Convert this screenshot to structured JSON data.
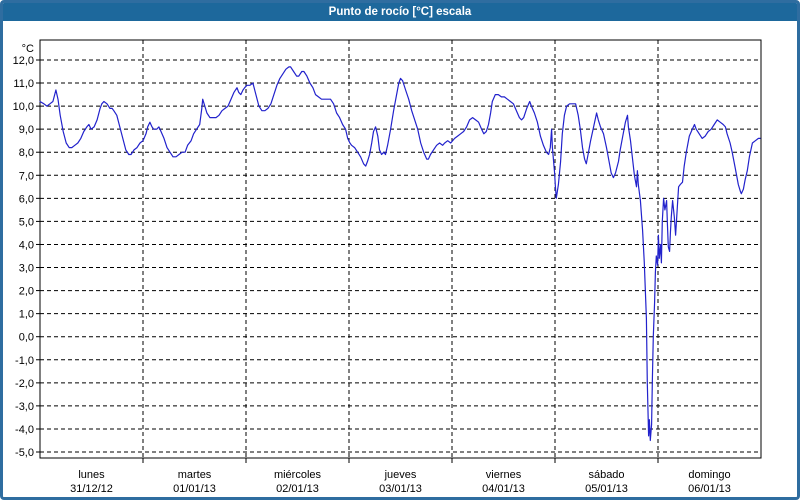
{
  "title": "Punto de rocío [°C] escala",
  "colors": {
    "frame_border": "#2f6da0",
    "titlebar_bg": "#1d689c",
    "title_text": "#ffffff",
    "grid": "#000000",
    "axis_text": "#000000",
    "line": "#2222cc",
    "plot_bg": "#ffffff"
  },
  "chart_data": {
    "type": "line",
    "title": "Punto de rocío [°C] escala",
    "series_name": "Punto de rocío",
    "unit_label": "°C",
    "grid": "dashed",
    "legend_position": "none",
    "ylim": [
      -5.3,
      12.9
    ],
    "xlim_hours": [
      0,
      168
    ],
    "y_ticks": [
      {
        "v": 12,
        "label": "12,0"
      },
      {
        "v": 11,
        "label": "11,0"
      },
      {
        "v": 10,
        "label": "10,0"
      },
      {
        "v": 9,
        "label": "9,0"
      },
      {
        "v": 8,
        "label": "8,0"
      },
      {
        "v": 7,
        "label": "7,0"
      },
      {
        "v": 6,
        "label": "6,0"
      },
      {
        "v": 5,
        "label": "5,0"
      },
      {
        "v": 4,
        "label": "4,0"
      },
      {
        "v": 3,
        "label": "3,0"
      },
      {
        "v": 2,
        "label": "2,0"
      },
      {
        "v": 1,
        "label": "1,0"
      },
      {
        "v": 0,
        "label": "0,0"
      },
      {
        "v": -1,
        "label": "-1,0"
      },
      {
        "v": -2,
        "label": "-2,0"
      },
      {
        "v": -3,
        "label": "-3,0"
      },
      {
        "v": -4,
        "label": "-4,0"
      },
      {
        "v": -5,
        "label": "-5,0"
      }
    ],
    "x_days": [
      {
        "name": "lunes",
        "date": "31/12/12"
      },
      {
        "name": "martes",
        "date": "01/01/13"
      },
      {
        "name": "miércoles",
        "date": "02/01/13"
      },
      {
        "name": "jueves",
        "date": "03/01/13"
      },
      {
        "name": "viernes",
        "date": "04/01/13"
      },
      {
        "name": "sábado",
        "date": "05/01/13"
      },
      {
        "name": "domingo",
        "date": "06/01/13"
      }
    ],
    "points": [
      [
        0,
        10.2
      ],
      [
        0.9,
        10.1
      ],
      [
        1.6,
        10.0
      ],
      [
        2.3,
        10.1
      ],
      [
        3.0,
        10.2
      ],
      [
        3.7,
        10.7
      ],
      [
        4.2,
        10.3
      ],
      [
        4.7,
        9.6
      ],
      [
        5.4,
        8.9
      ],
      [
        6.1,
        8.4
      ],
      [
        6.8,
        8.2
      ],
      [
        7.4,
        8.2
      ],
      [
        8.1,
        8.3
      ],
      [
        8.8,
        8.4
      ],
      [
        9.5,
        8.6
      ],
      [
        10.2,
        8.9
      ],
      [
        10.9,
        9.1
      ],
      [
        11.4,
        9.2
      ],
      [
        11.9,
        9.0
      ],
      [
        12.6,
        9.1
      ],
      [
        13.3,
        9.4
      ],
      [
        14.0,
        9.9
      ],
      [
        14.4,
        10.1
      ],
      [
        14.9,
        10.2
      ],
      [
        15.6,
        10.1
      ],
      [
        16.3,
        9.9
      ],
      [
        16.8,
        9.9
      ],
      [
        17.2,
        9.8
      ],
      [
        17.9,
        9.6
      ],
      [
        18.6,
        9.1
      ],
      [
        19.3,
        8.6
      ],
      [
        20.0,
        8.1
      ],
      [
        20.7,
        7.9
      ],
      [
        21.2,
        7.9
      ],
      [
        21.9,
        8.1
      ],
      [
        22.6,
        8.2
      ],
      [
        23.3,
        8.4
      ],
      [
        24.0,
        8.5
      ],
      [
        24.7,
        8.8
      ],
      [
        25.1,
        9.1
      ],
      [
        25.6,
        9.3
      ],
      [
        26.1,
        9.1
      ],
      [
        26.5,
        9.0
      ],
      [
        27.2,
        9.0
      ],
      [
        27.7,
        9.1
      ],
      [
        28.2,
        8.9
      ],
      [
        28.9,
        8.6
      ],
      [
        29.6,
        8.2
      ],
      [
        30.3,
        8.0
      ],
      [
        31.0,
        7.8
      ],
      [
        31.7,
        7.8
      ],
      [
        32.4,
        7.9
      ],
      [
        33.1,
        8.0
      ],
      [
        33.8,
        8.0
      ],
      [
        34.4,
        8.3
      ],
      [
        35.2,
        8.5
      ],
      [
        35.8,
        8.8
      ],
      [
        36.5,
        9.0
      ],
      [
        37.2,
        9.2
      ],
      [
        37.7,
        9.9
      ],
      [
        37.9,
        10.3
      ],
      [
        38.4,
        10.0
      ],
      [
        38.9,
        9.7
      ],
      [
        39.6,
        9.5
      ],
      [
        40.3,
        9.5
      ],
      [
        41.0,
        9.5
      ],
      [
        41.7,
        9.6
      ],
      [
        42.4,
        9.8
      ],
      [
        43.1,
        9.9
      ],
      [
        43.8,
        10.0
      ],
      [
        44.5,
        10.3
      ],
      [
        45.2,
        10.6
      ],
      [
        45.9,
        10.8
      ],
      [
        46.3,
        10.6
      ],
      [
        46.8,
        10.5
      ],
      [
        47.3,
        10.7
      ],
      [
        47.7,
        10.8
      ],
      [
        48.2,
        10.9
      ],
      [
        48.9,
        10.9
      ],
      [
        49.6,
        11.0
      ],
      [
        50.3,
        10.5
      ],
      [
        51.0,
        10.0
      ],
      [
        51.7,
        9.8
      ],
      [
        52.4,
        9.8
      ],
      [
        53.1,
        9.9
      ],
      [
        53.8,
        10.1
      ],
      [
        54.5,
        10.5
      ],
      [
        55.2,
        10.9
      ],
      [
        55.9,
        11.2
      ],
      [
        56.6,
        11.4
      ],
      [
        57.3,
        11.6
      ],
      [
        58.0,
        11.7
      ],
      [
        58.4,
        11.7
      ],
      [
        59.1,
        11.5
      ],
      [
        59.8,
        11.3
      ],
      [
        60.3,
        11.3
      ],
      [
        61.0,
        11.5
      ],
      [
        61.5,
        11.5
      ],
      [
        62.2,
        11.3
      ],
      [
        62.9,
        11.0
      ],
      [
        63.6,
        10.8
      ],
      [
        64.2,
        10.5
      ],
      [
        64.9,
        10.4
      ],
      [
        65.6,
        10.3
      ],
      [
        66.3,
        10.3
      ],
      [
        67.0,
        10.3
      ],
      [
        67.7,
        10.3
      ],
      [
        68.4,
        10.1
      ],
      [
        69.1,
        9.7
      ],
      [
        69.8,
        9.5
      ],
      [
        70.5,
        9.2
      ],
      [
        71.2,
        9.0
      ],
      [
        71.7,
        8.6
      ],
      [
        72.2,
        8.4
      ],
      [
        72.6,
        8.3
      ],
      [
        73.3,
        8.2
      ],
      [
        74.0,
        8.0
      ],
      [
        74.7,
        7.8
      ],
      [
        75.4,
        7.5
      ],
      [
        75.9,
        7.4
      ],
      [
        76.3,
        7.6
      ],
      [
        76.8,
        7.9
      ],
      [
        77.3,
        8.4
      ],
      [
        77.7,
        8.9
      ],
      [
        78.2,
        9.1
      ],
      [
        78.7,
        8.7
      ],
      [
        79.1,
        8.1
      ],
      [
        79.6,
        7.9
      ],
      [
        80.1,
        8.0
      ],
      [
        80.5,
        7.9
      ],
      [
        81.0,
        8.3
      ],
      [
        81.7,
        9.0
      ],
      [
        82.4,
        9.8
      ],
      [
        83.1,
        10.5
      ],
      [
        83.6,
        11.0
      ],
      [
        84.0,
        11.2
      ],
      [
        84.5,
        11.1
      ],
      [
        85.2,
        10.7
      ],
      [
        85.9,
        10.3
      ],
      [
        86.6,
        9.8
      ],
      [
        87.3,
        9.4
      ],
      [
        88.0,
        9.0
      ],
      [
        88.7,
        8.4
      ],
      [
        89.4,
        8.0
      ],
      [
        90.1,
        7.7
      ],
      [
        90.5,
        7.7
      ],
      [
        91.0,
        7.9
      ],
      [
        91.7,
        8.1
      ],
      [
        92.4,
        8.3
      ],
      [
        93.1,
        8.4
      ],
      [
        93.8,
        8.3
      ],
      [
        94.3,
        8.4
      ],
      [
        95.0,
        8.5
      ],
      [
        95.7,
        8.4
      ],
      [
        96.6,
        8.6
      ],
      [
        97.3,
        8.7
      ],
      [
        98.0,
        8.8
      ],
      [
        98.7,
        8.9
      ],
      [
        99.4,
        9.1
      ],
      [
        100.1,
        9.4
      ],
      [
        100.8,
        9.5
      ],
      [
        101.5,
        9.4
      ],
      [
        102.2,
        9.3
      ],
      [
        102.9,
        9.0
      ],
      [
        103.4,
        8.8
      ],
      [
        104.0,
        8.9
      ],
      [
        104.5,
        9.2
      ],
      [
        105.0,
        9.7
      ],
      [
        105.4,
        10.2
      ],
      [
        106.1,
        10.5
      ],
      [
        106.8,
        10.5
      ],
      [
        107.5,
        10.4
      ],
      [
        108.2,
        10.4
      ],
      [
        108.9,
        10.3
      ],
      [
        109.6,
        10.2
      ],
      [
        110.3,
        10.1
      ],
      [
        111.0,
        9.8
      ],
      [
        111.7,
        9.5
      ],
      [
        112.2,
        9.4
      ],
      [
        112.7,
        9.5
      ],
      [
        113.4,
        9.9
      ],
      [
        114.1,
        10.2
      ],
      [
        114.5,
        10.0
      ],
      [
        115.2,
        9.7
      ],
      [
        115.9,
        9.3
      ],
      [
        116.6,
        8.7
      ],
      [
        117.3,
        8.3
      ],
      [
        118.0,
        8.0
      ],
      [
        118.5,
        7.9
      ],
      [
        118.9,
        8.2
      ],
      [
        119.2,
        9.0
      ],
      [
        119.4,
        8.2
      ],
      [
        119.9,
        7.1
      ],
      [
        120.1,
        6.5
      ],
      [
        120.3,
        6.0
      ],
      [
        120.8,
        6.6
      ],
      [
        121.3,
        7.6
      ],
      [
        121.7,
        8.8
      ],
      [
        122.2,
        9.6
      ],
      [
        122.7,
        10.0
      ],
      [
        123.4,
        10.1
      ],
      [
        124.1,
        10.1
      ],
      [
        124.8,
        10.1
      ],
      [
        125.4,
        9.6
      ],
      [
        125.9,
        9.0
      ],
      [
        126.4,
        8.2
      ],
      [
        126.9,
        7.7
      ],
      [
        127.3,
        7.5
      ],
      [
        127.8,
        8.0
      ],
      [
        128.3,
        8.5
      ],
      [
        129.0,
        9.1
      ],
      [
        129.7,
        9.7
      ],
      [
        130.1,
        9.4
      ],
      [
        130.6,
        9.1
      ],
      [
        131.3,
        8.8
      ],
      [
        132.0,
        8.2
      ],
      [
        132.7,
        7.5
      ],
      [
        133.1,
        7.1
      ],
      [
        133.6,
        6.9
      ],
      [
        134.1,
        7.1
      ],
      [
        134.8,
        7.6
      ],
      [
        135.2,
        8.1
      ],
      [
        135.9,
        8.8
      ],
      [
        136.4,
        9.3
      ],
      [
        136.9,
        9.6
      ],
      [
        137.1,
        9.1
      ],
      [
        137.6,
        8.5
      ],
      [
        138.0,
        7.8
      ],
      [
        138.5,
        7.0
      ],
      [
        139.0,
        6.5
      ],
      [
        139.2,
        7.2
      ],
      [
        139.4,
        6.6
      ],
      [
        139.9,
        5.9
      ],
      [
        140.4,
        4.6
      ],
      [
        140.8,
        3.2
      ],
      [
        141.3,
        0.8
      ],
      [
        141.5,
        -2.0
      ],
      [
        141.8,
        -4.3
      ],
      [
        142.0,
        -3.6
      ],
      [
        142.2,
        -4.5
      ],
      [
        142.5,
        -3.8
      ],
      [
        142.7,
        -1.8
      ],
      [
        142.9,
        0.0
      ],
      [
        143.2,
        1.5
      ],
      [
        143.4,
        2.8
      ],
      [
        143.6,
        3.5
      ],
      [
        143.9,
        3.1
      ],
      [
        144.1,
        4.4
      ],
      [
        144.3,
        3.4
      ],
      [
        144.6,
        4.0
      ],
      [
        144.8,
        3.2
      ],
      [
        145.0,
        5.0
      ],
      [
        145.3,
        6.0
      ],
      [
        145.6,
        5.5
      ],
      [
        146.0,
        5.9
      ],
      [
        146.2,
        4.9
      ],
      [
        146.4,
        3.9
      ],
      [
        146.7,
        3.7
      ],
      [
        146.9,
        4.5
      ],
      [
        147.1,
        5.2
      ],
      [
        147.4,
        5.9
      ],
      [
        147.8,
        5.2
      ],
      [
        148.1,
        4.4
      ],
      [
        148.5,
        5.6
      ],
      [
        148.8,
        6.5
      ],
      [
        149.2,
        6.6
      ],
      [
        149.7,
        6.7
      ],
      [
        150.1,
        7.4
      ],
      [
        150.6,
        8.0
      ],
      [
        151.3,
        8.7
      ],
      [
        152.0,
        9.0
      ],
      [
        152.5,
        9.2
      ],
      [
        152.9,
        9.0
      ],
      [
        153.6,
        8.8
      ],
      [
        154.3,
        8.6
      ],
      [
        155.0,
        8.7
      ],
      [
        155.7,
        8.9
      ],
      [
        156.4,
        9.0
      ],
      [
        157.1,
        9.2
      ],
      [
        157.8,
        9.4
      ],
      [
        158.5,
        9.3
      ],
      [
        159.2,
        9.2
      ],
      [
        159.7,
        9.1
      ],
      [
        160.1,
        8.8
      ],
      [
        160.8,
        8.4
      ],
      [
        161.3,
        8.0
      ],
      [
        162.0,
        7.3
      ],
      [
        162.7,
        6.6
      ],
      [
        163.2,
        6.3
      ],
      [
        163.4,
        6.2
      ],
      [
        163.9,
        6.4
      ],
      [
        164.3,
        6.8
      ],
      [
        164.8,
        7.2
      ],
      [
        165.3,
        7.8
      ],
      [
        166.0,
        8.4
      ],
      [
        166.7,
        8.5
      ],
      [
        167.4,
        8.6
      ],
      [
        167.8,
        8.6
      ]
    ]
  }
}
